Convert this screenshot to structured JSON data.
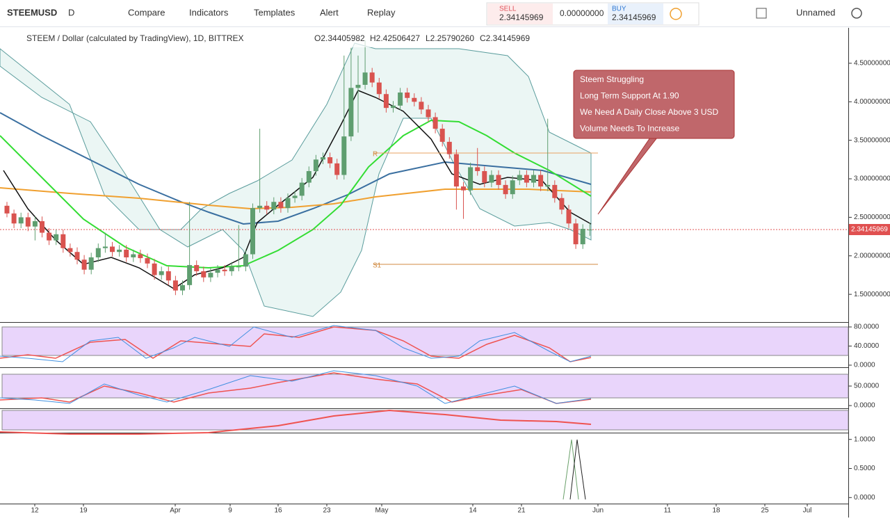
{
  "toolbar": {
    "symbol": "STEEMUSD",
    "interval": "D",
    "compare": "Compare",
    "indicators": "Indicators",
    "templates": "Templates",
    "alert": "Alert",
    "replay": "Replay",
    "layout": "Unnamed"
  },
  "trade": {
    "sell_label": "SELL",
    "sell_price": "2.34145969",
    "spread": "0.00000000",
    "buy_label": "BUY",
    "buy_price": "2.34145969"
  },
  "legend": {
    "title": "STEEM / Dollar (calculated by TradingView), 1D, BITTREX",
    "open": "O2.34405982",
    "high": "H2.42506427",
    "low": "L2.25790260",
    "close": "C2.34145969"
  },
  "annotation": [
    "Steem Struggling",
    "Long Term Support At 1.90",
    "We Need A Daily Close Above 3 USD",
    "Volume Needs To Increase"
  ],
  "pivots": {
    "r": "R",
    "s1": "S1"
  },
  "price_axis": {
    "ylim": [
      1.14,
      4.96
    ],
    "ticks": [
      {
        "value": 4.5,
        "label": "4.50000000"
      },
      {
        "value": 4.0,
        "label": "4.00000000"
      },
      {
        "value": 3.5,
        "label": "3.50000000"
      },
      {
        "value": 3.0,
        "label": "3.00000000"
      },
      {
        "value": 2.5,
        "label": "2.50000000"
      },
      {
        "value": 2.0,
        "label": "2.00000000"
      },
      {
        "value": 1.5,
        "label": "1.50000000"
      }
    ],
    "last": {
      "value": 2.34145969,
      "label": "2.34145969"
    }
  },
  "panels": [
    {
      "ylim": [
        -4.4,
        84.4
      ],
      "ticks": [
        {
          "value": 80,
          "label": "80.0000"
        },
        {
          "value": 40,
          "label": "40.0000"
        },
        {
          "value": 0,
          "label": "0.0000"
        }
      ]
    },
    {
      "ylim": [
        -7,
        91
      ],
      "ticks": [
        {
          "value": 50,
          "label": "50.0000"
        },
        {
          "value": 0,
          "label": "0.0000"
        }
      ]
    },
    {
      "ylim": [
        -0.08,
        1.08
      ],
      "ticks": [
        {
          "value": 1,
          "label": "1.0000"
        },
        {
          "value": 0.5,
          "label": "0.5000"
        },
        {
          "value": 0,
          "label": "0.0000"
        }
      ]
    }
  ],
  "date_axis": [
    "12",
    "19",
    "Apr",
    "9",
    "16",
    "23",
    "May",
    "14",
    "21",
    "Jun",
    "11",
    "18",
    "25",
    "Jul"
  ],
  "candles": [
    [
      2.65,
      2.7,
      2.5,
      2.55
    ],
    [
      2.55,
      2.6,
      2.36,
      2.42
    ],
    [
      2.42,
      2.56,
      2.36,
      2.5
    ],
    [
      2.5,
      2.56,
      2.32,
      2.38
    ],
    [
      2.38,
      2.51,
      2.2,
      2.45
    ],
    [
      2.45,
      2.51,
      2.24,
      2.3
    ],
    [
      2.3,
      2.36,
      2.14,
      2.2
    ],
    [
      2.2,
      2.34,
      2.14,
      2.28
    ],
    [
      2.28,
      2.34,
      2.04,
      2.1
    ],
    [
      2.1,
      2.16,
      1.99,
      2.05
    ],
    [
      2.05,
      2.11,
      1.89,
      1.95
    ],
    [
      1.95,
      2.01,
      1.76,
      1.82
    ],
    [
      1.82,
      2.04,
      1.76,
      1.98
    ],
    [
      1.98,
      2.16,
      1.92,
      2.1
    ],
    [
      2.1,
      2.3,
      2.04,
      2.12
    ],
    [
      2.12,
      2.18,
      1.99,
      2.05
    ],
    [
      2.05,
      2.14,
      1.99,
      2.08
    ],
    [
      2.08,
      2.14,
      1.92,
      1.98
    ],
    [
      1.98,
      2.08,
      1.92,
      2.02
    ],
    [
      2.02,
      2.08,
      1.91,
      1.97
    ],
    [
      1.97,
      2.03,
      1.84,
      1.9
    ],
    [
      1.9,
      1.96,
      1.69,
      1.75
    ],
    [
      1.75,
      1.86,
      1.69,
      1.8
    ],
    [
      1.8,
      1.86,
      1.62,
      1.68
    ],
    [
      1.68,
      1.74,
      1.49,
      1.55
    ],
    [
      1.55,
      1.68,
      1.49,
      1.62
    ],
    [
      1.62,
      2.7,
      1.56,
      1.88
    ],
    [
      1.88,
      1.94,
      1.74,
      1.8
    ],
    [
      1.8,
      1.86,
      1.66,
      1.72
    ],
    [
      1.72,
      1.84,
      1.66,
      1.78
    ],
    [
      1.78,
      1.88,
      1.72,
      1.82
    ],
    [
      1.82,
      1.88,
      1.74,
      1.8
    ],
    [
      1.8,
      1.92,
      1.74,
      1.86
    ],
    [
      1.86,
      2.4,
      1.8,
      1.86
    ],
    [
      1.86,
      2.08,
      1.8,
      2.02
    ],
    [
      2.02,
      2.68,
      1.96,
      2.62
    ],
    [
      2.62,
      3.65,
      2.56,
      2.65
    ],
    [
      2.65,
      2.71,
      2.54,
      2.6
    ],
    [
      2.6,
      2.76,
      2.54,
      2.7
    ],
    [
      2.7,
      2.76,
      2.56,
      2.62
    ],
    [
      2.62,
      2.81,
      2.56,
      2.75
    ],
    [
      2.75,
      2.84,
      2.69,
      2.78
    ],
    [
      2.78,
      3.01,
      2.72,
      2.95
    ],
    [
      2.95,
      3.16,
      2.89,
      3.1
    ],
    [
      3.1,
      3.31,
      3.04,
      3.25
    ],
    [
      3.25,
      3.34,
      3.19,
      3.28
    ],
    [
      3.28,
      3.34,
      3.14,
      3.2
    ],
    [
      3.2,
      3.26,
      2.99,
      3.05
    ],
    [
      3.05,
      4.6,
      2.99,
      3.55
    ],
    [
      3.55,
      4.7,
      3.49,
      4.18
    ],
    [
      4.18,
      4.6,
      3.6,
      4.22
    ],
    [
      4.22,
      4.8,
      4.16,
      4.38
    ],
    [
      4.38,
      4.44,
      4.19,
      4.25
    ],
    [
      4.25,
      4.31,
      4.04,
      4.1
    ],
    [
      4.1,
      4.16,
      3.86,
      3.92
    ],
    [
      3.92,
      4.01,
      3.86,
      3.95
    ],
    [
      3.95,
      4.18,
      3.89,
      4.12
    ],
    [
      4.12,
      4.18,
      3.99,
      4.05
    ],
    [
      4.05,
      4.11,
      3.94,
      4.0
    ],
    [
      4.0,
      4.06,
      3.84,
      3.9
    ],
    [
      3.9,
      3.96,
      3.74,
      3.8
    ],
    [
      3.8,
      3.86,
      3.59,
      3.65
    ],
    [
      3.65,
      3.71,
      3.42,
      3.48
    ],
    [
      3.48,
      3.54,
      3.26,
      3.32
    ],
    [
      3.32,
      3.38,
      2.6,
      2.9
    ],
    [
      2.9,
      2.96,
      2.48,
      2.85
    ],
    [
      2.85,
      3.21,
      2.79,
      3.15
    ],
    [
      3.15,
      3.4,
      3.04,
      3.1
    ],
    [
      3.1,
      3.16,
      2.89,
      2.95
    ],
    [
      2.95,
      3.11,
      2.89,
      3.05
    ],
    [
      3.05,
      3.11,
      2.86,
      2.92
    ],
    [
      2.92,
      2.98,
      2.74,
      2.8
    ],
    [
      2.8,
      3.04,
      2.74,
      2.98
    ],
    [
      2.98,
      3.11,
      2.92,
      3.05
    ],
    [
      3.05,
      3.11,
      2.89,
      2.95
    ],
    [
      2.95,
      3.11,
      2.89,
      3.05
    ],
    [
      3.05,
      3.11,
      2.84,
      2.9
    ],
    [
      2.9,
      3.78,
      2.84,
      2.92
    ],
    [
      2.92,
      2.98,
      2.69,
      2.75
    ],
    [
      2.75,
      2.81,
      2.54,
      2.6
    ],
    [
      2.6,
      2.66,
      2.36,
      2.42
    ],
    [
      2.42,
      2.48,
      2.09,
      2.15
    ],
    [
      2.15,
      2.41,
      2.09,
      2.35
    ],
    [
      2.34,
      2.43,
      2.26,
      2.34
    ]
  ]
}
